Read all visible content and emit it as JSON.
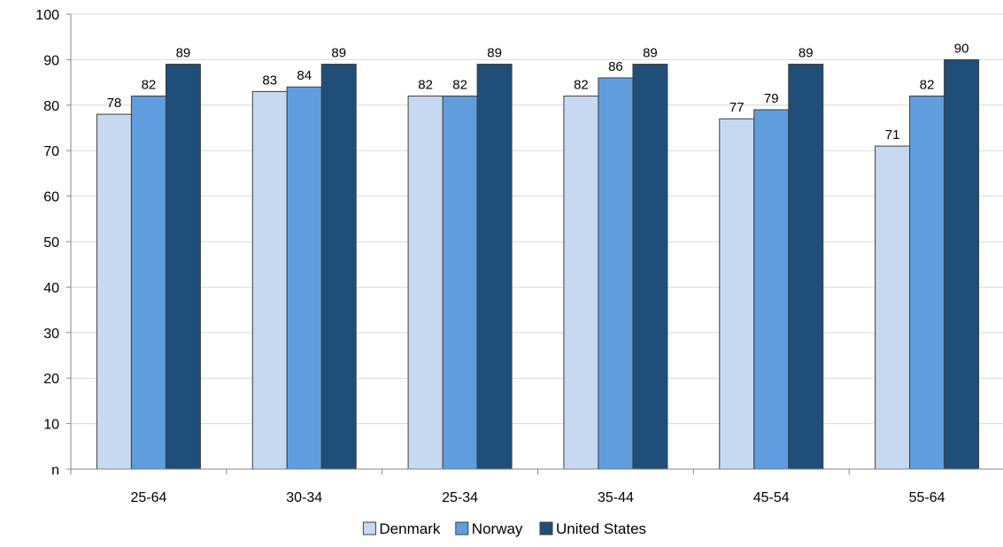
{
  "chart_data": {
    "type": "bar",
    "title": "",
    "xlabel": "",
    "ylabel": "",
    "categories": [
      "25-64",
      "30-34",
      "25-34",
      "35-44",
      "45-54",
      "55-64"
    ],
    "series": [
      {
        "name": "Denmark",
        "values": [
          78,
          83,
          82,
          82,
          77,
          71
        ],
        "labels": [
          "78",
          "83",
          "82",
          "82",
          "77",
          "71"
        ],
        "color": "#c6d9f1"
      },
      {
        "name": "Norway",
        "values": [
          82,
          84,
          82,
          86,
          79,
          82
        ],
        "labels": [
          "82",
          "84",
          "82",
          "86",
          "79",
          "82"
        ],
        "color": "#5f9ddf"
      },
      {
        "name": "United States",
        "values": [
          89,
          89,
          89,
          89,
          89,
          90
        ],
        "labels": [
          "89",
          "89",
          "89",
          "89",
          "89",
          "90"
        ],
        "color": "#1f4e79"
      }
    ],
    "ylim": [
      0,
      100
    ],
    "yticks": [
      0,
      10,
      20,
      30,
      40,
      50,
      60,
      70,
      80,
      90,
      100
    ],
    "ytick_labels": [
      "n",
      "10",
      "20",
      "30",
      "40",
      "50",
      "60",
      "70",
      "80",
      "90",
      "100"
    ],
    "grid": true,
    "legend_position": "bottom-center"
  }
}
